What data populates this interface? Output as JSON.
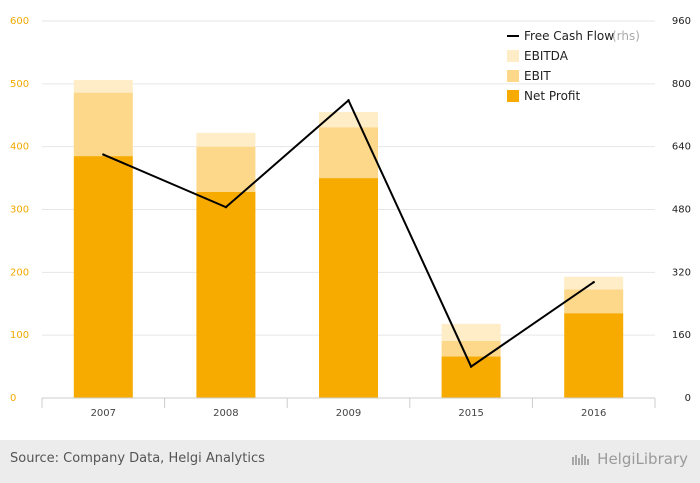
{
  "chart_data": {
    "type": "bar",
    "categories": [
      "2007",
      "2008",
      "2009",
      "2015",
      "2016"
    ],
    "series": [
      {
        "name": "Net Profit",
        "kind": "bar-stack",
        "values": [
          385,
          328,
          350,
          66,
          135
        ]
      },
      {
        "name": "EBIT",
        "kind": "bar-stack",
        "values": [
          486,
          400,
          431,
          91,
          173
        ]
      },
      {
        "name": "EBITDA",
        "kind": "bar-stack",
        "values": [
          506,
          422,
          455,
          118,
          193
        ]
      },
      {
        "name": "Free Cash Flow",
        "rhs_tag": "(rhs)",
        "kind": "line",
        "axis": "right",
        "values": [
          620,
          486,
          758,
          80,
          295
        ]
      }
    ],
    "ylim_left": [
      0,
      600
    ],
    "yticks_left": [
      0,
      100,
      200,
      300,
      400,
      500,
      600
    ],
    "ylim_right": [
      0,
      960
    ],
    "yticks_right": [
      0,
      160,
      320,
      480,
      640,
      800,
      960
    ],
    "legend_position": "top-right",
    "grid": true
  },
  "colors": {
    "net_profit": "#f7ab00",
    "ebit": "#fdd78a",
    "ebitda": "#feedc6",
    "fcf_line": "#000000",
    "left_axis": "#f2a900",
    "grid": "#e6e6e6",
    "footer_bg": "#ececec"
  },
  "footer": {
    "source": "Source: Company Data, Helgi Analytics",
    "brand": "HelgiLibrary",
    "brand_icon": "library-logo-icon"
  }
}
